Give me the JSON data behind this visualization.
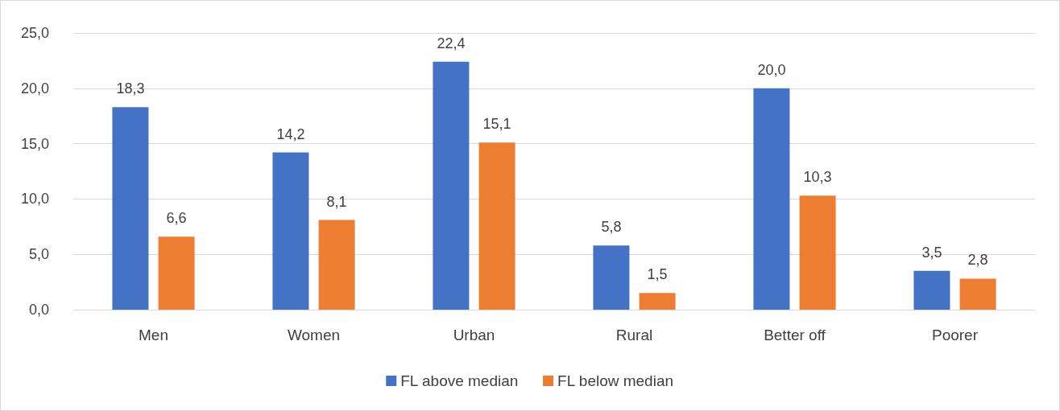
{
  "chart_data": {
    "type": "bar",
    "categories": [
      "Men",
      "Women",
      "Urban",
      "Rural",
      "Better off",
      "Poorer"
    ],
    "series": [
      {
        "name": "FL above median",
        "color": "#4472c4",
        "values": [
          18.3,
          14.2,
          22.4,
          5.8,
          20.0,
          3.5
        ],
        "value_labels": [
          "18,3",
          "14,2",
          "22,4",
          "5,8",
          "20,0",
          "3,5"
        ]
      },
      {
        "name": "FL below median",
        "color": "#ed7d31",
        "values": [
          6.6,
          8.1,
          15.1,
          1.5,
          10.3,
          2.8
        ],
        "value_labels": [
          "6,6",
          "8,1",
          "15,1",
          "1,5",
          "10,3",
          "2,8"
        ]
      }
    ],
    "ylim": [
      0,
      25
    ],
    "yticks": [
      {
        "value": 0,
        "label": "0,0"
      },
      {
        "value": 5,
        "label": "5,0"
      },
      {
        "value": 10,
        "label": "10,0"
      },
      {
        "value": 15,
        "label": "15,0"
      },
      {
        "value": 20,
        "label": "20,0"
      },
      {
        "value": 25,
        "label": "25,0"
      }
    ],
    "grid": "y",
    "legend": "bottom"
  }
}
